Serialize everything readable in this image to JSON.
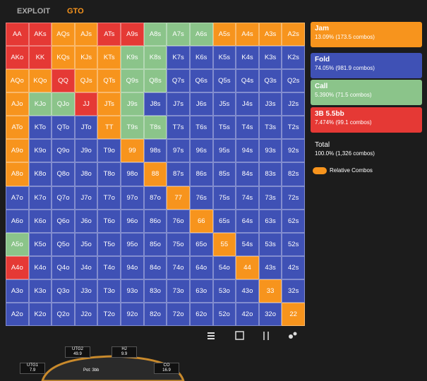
{
  "tabs": [
    "EXPLOIT",
    "GTO"
  ],
  "grid": {
    "labels": [
      [
        "AA",
        "AKs",
        "AQs",
        "AJs",
        "ATs",
        "A9s",
        "A8s",
        "A7s",
        "A6s",
        "A5s",
        "A4s",
        "A3s",
        "A2s"
      ],
      [
        "AKo",
        "KK",
        "KQs",
        "KJs",
        "KTs",
        "K9s",
        "K8s",
        "K7s",
        "K6s",
        "K5s",
        "K4s",
        "K3s",
        "K2s"
      ],
      [
        "AQo",
        "KQo",
        "QQ",
        "QJs",
        "QTs",
        "Q9s",
        "Q8s",
        "Q7s",
        "Q6s",
        "Q5s",
        "Q4s",
        "Q3s",
        "Q2s"
      ],
      [
        "AJo",
        "KJo",
        "QJo",
        "JJ",
        "JTs",
        "J9s",
        "J8s",
        "J7s",
        "J6s",
        "J5s",
        "J4s",
        "J3s",
        "J2s"
      ],
      [
        "ATo",
        "KTo",
        "QTo",
        "JTo",
        "TT",
        "T9s",
        "T8s",
        "T7s",
        "T6s",
        "T5s",
        "T4s",
        "T3s",
        "T2s"
      ],
      [
        "A9o",
        "K9o",
        "Q9o",
        "J9o",
        "T9o",
        "99",
        "98s",
        "97s",
        "96s",
        "95s",
        "94s",
        "93s",
        "92s"
      ],
      [
        "A8o",
        "K8o",
        "Q8o",
        "J8o",
        "T8o",
        "98o",
        "88",
        "87s",
        "86s",
        "85s",
        "84s",
        "83s",
        "82s"
      ],
      [
        "A7o",
        "K7o",
        "Q7o",
        "J7o",
        "T7o",
        "97o",
        "87o",
        "77",
        "76s",
        "75s",
        "74s",
        "73s",
        "72s"
      ],
      [
        "A6o",
        "K6o",
        "Q6o",
        "J6o",
        "T6o",
        "96o",
        "86o",
        "76o",
        "66",
        "65s",
        "64s",
        "63s",
        "62s"
      ],
      [
        "A5o",
        "K5o",
        "Q5o",
        "J5o",
        "T5o",
        "95o",
        "85o",
        "75o",
        "65o",
        "55",
        "54s",
        "53s",
        "52s"
      ],
      [
        "A4o",
        "K4o",
        "Q4o",
        "J4o",
        "T4o",
        "94o",
        "84o",
        "74o",
        "64o",
        "54o",
        "44",
        "43s",
        "42s"
      ],
      [
        "A3o",
        "K3o",
        "Q3o",
        "J3o",
        "T3o",
        "93o",
        "83o",
        "73o",
        "63o",
        "53o",
        "43o",
        "33",
        "32s"
      ],
      [
        "A2o",
        "K2o",
        "Q2o",
        "J2o",
        "T2o",
        "92o",
        "82o",
        "72o",
        "62o",
        "52o",
        "42o",
        "32o",
        "22"
      ]
    ],
    "colors": [
      [
        "#e53935",
        "#e53935",
        "#f7941d",
        "#f7941d",
        "#e53935",
        "#e53935",
        "#8bc48a",
        "#8bc48a",
        "#8bc48a",
        "#f7941d",
        "#f7941d",
        "#f7941d",
        "#f7941d"
      ],
      [
        "#e53935",
        "#e53935",
        "#f7941d",
        "#f7941d",
        "#f7941d",
        "#8bc48a",
        "#8bc48a",
        "#3f51b5",
        "#3f51b5",
        "#3f51b5",
        "#3f51b5",
        "#3f51b5",
        "#3f51b5"
      ],
      [
        "#f7941d",
        "#f7941d",
        "#e53935",
        "#f7941d",
        "#f7941d",
        "#8bc48a",
        "#8bc48a",
        "#3f51b5",
        "#3f51b5",
        "#3f51b5",
        "#3f51b5",
        "#3f51b5",
        "#3f51b5"
      ],
      [
        "#f7941d",
        "#8bc48a",
        "#8bc48a",
        "#e53935",
        "#f7941d",
        "#8bc48a",
        "#3f51b5",
        "#3f51b5",
        "#3f51b5",
        "#3f51b5",
        "#3f51b5",
        "#3f51b5",
        "#3f51b5"
      ],
      [
        "#f7941d",
        "#3f51b5",
        "#3f51b5",
        "#3f51b5",
        "#f7941d",
        "#8bc48a",
        "#8bc48a",
        "#3f51b5",
        "#3f51b5",
        "#3f51b5",
        "#3f51b5",
        "#3f51b5",
        "#3f51b5"
      ],
      [
        "#f7941d",
        "#3f51b5",
        "#3f51b5",
        "#3f51b5",
        "#3f51b5",
        "#f7941d",
        "#3f51b5",
        "#3f51b5",
        "#3f51b5",
        "#3f51b5",
        "#3f51b5",
        "#3f51b5",
        "#3f51b5"
      ],
      [
        "#f7941d",
        "#3f51b5",
        "#3f51b5",
        "#3f51b5",
        "#3f51b5",
        "#3f51b5",
        "#f7941d",
        "#3f51b5",
        "#3f51b5",
        "#3f51b5",
        "#3f51b5",
        "#3f51b5",
        "#3f51b5"
      ],
      [
        "#3f51b5",
        "#3f51b5",
        "#3f51b5",
        "#3f51b5",
        "#3f51b5",
        "#3f51b5",
        "#3f51b5",
        "#f7941d",
        "#3f51b5",
        "#3f51b5",
        "#3f51b5",
        "#3f51b5",
        "#3f51b5"
      ],
      [
        "#3f51b5",
        "#3f51b5",
        "#3f51b5",
        "#3f51b5",
        "#3f51b5",
        "#3f51b5",
        "#3f51b5",
        "#3f51b5",
        "#f7941d",
        "#3f51b5",
        "#3f51b5",
        "#3f51b5",
        "#3f51b5"
      ],
      [
        "#8bc48a",
        "#3f51b5",
        "#3f51b5",
        "#3f51b5",
        "#3f51b5",
        "#3f51b5",
        "#3f51b5",
        "#3f51b5",
        "#3f51b5",
        "#f7941d",
        "#3f51b5",
        "#3f51b5",
        "#3f51b5"
      ],
      [
        "#e53935",
        "#3f51b5",
        "#3f51b5",
        "#3f51b5",
        "#3f51b5",
        "#3f51b5",
        "#3f51b5",
        "#3f51b5",
        "#3f51b5",
        "#3f51b5",
        "#f7941d",
        "#3f51b5",
        "#3f51b5"
      ],
      [
        "#3f51b5",
        "#3f51b5",
        "#3f51b5",
        "#3f51b5",
        "#3f51b5",
        "#3f51b5",
        "#3f51b5",
        "#3f51b5",
        "#3f51b5",
        "#3f51b5",
        "#3f51b5",
        "#f7941d",
        "#3f51b5"
      ],
      [
        "#3f51b5",
        "#3f51b5",
        "#3f51b5",
        "#3f51b5",
        "#3f51b5",
        "#3f51b5",
        "#3f51b5",
        "#3f51b5",
        "#3f51b5",
        "#3f51b5",
        "#3f51b5",
        "#3f51b5",
        "#f7941d"
      ]
    ]
  },
  "legend": [
    {
      "title": "Jam",
      "detail": "13.09% (173.5 combos)",
      "color": "#f7941d"
    },
    {
      "title": "Fold",
      "detail": "74.05% (981.9 combos)",
      "color": "#3f51b5"
    },
    {
      "title": "Call",
      "detail": "5.390% (71.5 combos)",
      "color": "#8bc48a"
    },
    {
      "title": "3B 5.5bb",
      "detail": "7.474% (99.1 combos)",
      "color": "#e53935"
    }
  ],
  "total": {
    "title": "Total",
    "detail": "100.0% (1,326 combos)"
  },
  "toggle": "Relative Combos",
  "table": {
    "pot": "Pot: 3bb",
    "seats": [
      {
        "name": "UTG1",
        "stack": "7.9"
      },
      {
        "name": "UTG2",
        "stack": "49.9"
      },
      {
        "name": "HJ",
        "stack": "9.9"
      },
      {
        "name": "CO",
        "stack": "16.9"
      }
    ]
  }
}
